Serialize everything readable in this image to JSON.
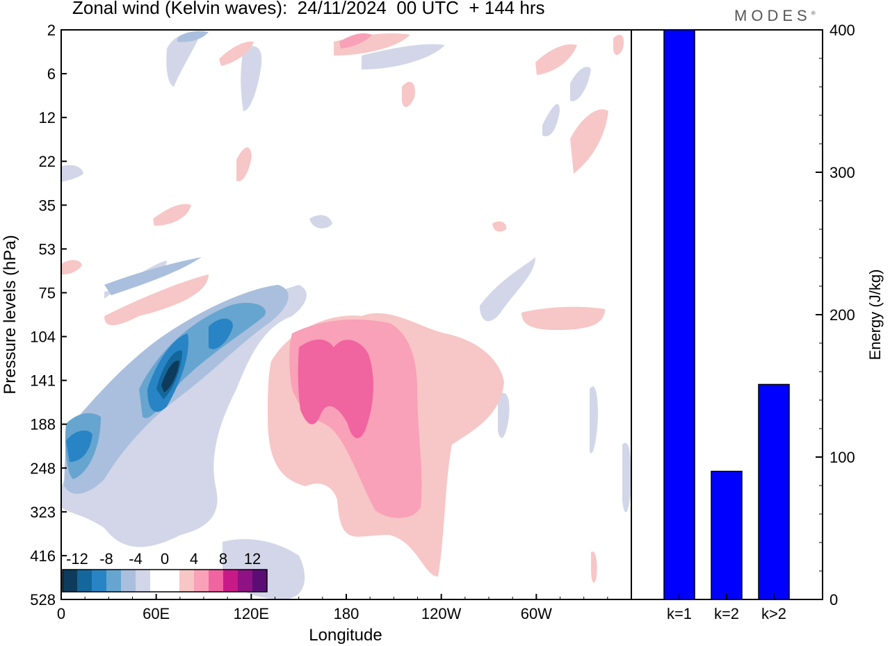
{
  "header": {
    "title": "Zonal wind (Kelvin waves):  24/11/2024  00 UTC  + 144 hrs",
    "brand": "MODES",
    "brand_mark": "®"
  },
  "colors": {
    "neg": [
      "#0d3b5c",
      "#14679b",
      "#2884c4",
      "#66a5d0",
      "#a9bfdd",
      "#d2d6e8"
    ],
    "pos": [
      "#f7c6c6",
      "#f8a1b8",
      "#f064a0",
      "#c81a86",
      "#8e1283",
      "#5c0d74"
    ],
    "bar": "#0000ff"
  },
  "chart_data": [
    {
      "type": "heatmap",
      "xlabel": "Longitude",
      "ylabel": "Pressure levels (hPa)",
      "x_ticks": [
        "0",
        "60E",
        "120E",
        "180",
        "120W",
        "60W"
      ],
      "y_ticks": [
        "2",
        "6",
        "12",
        "22",
        "35",
        "53",
        "75",
        "104",
        "141",
        "188",
        "248",
        "323",
        "416",
        "528"
      ],
      "colorbar": {
        "labels": [
          "-12",
          "-8",
          "-4",
          "0",
          "4",
          "8",
          "12"
        ]
      },
      "description_values": "hovmoller-style longitude-pressure section of Kelvin-wave zonal wind"
    },
    {
      "type": "bar",
      "categories": [
        "k=1",
        "k=2",
        "k>2"
      ],
      "values": [
        400,
        90,
        151
      ],
      "ylabel": "Energy (J/kg)",
      "ylim": [
        0,
        400
      ],
      "y_ticks": [
        0,
        100,
        200,
        300,
        400
      ]
    }
  ]
}
